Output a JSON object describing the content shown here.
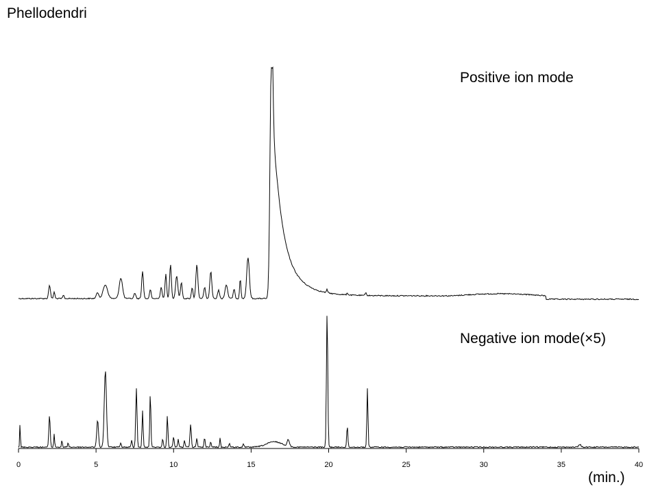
{
  "chart_data": {
    "type": "line",
    "title": "Phellodendri",
    "xlabel": "(min.)",
    "ylabel": "",
    "xlim": [
      0,
      40
    ],
    "xticks": [
      "0",
      "5",
      "10",
      "15",
      "20",
      "25",
      "30",
      "35",
      "40"
    ],
    "grid": false,
    "series": [
      {
        "name": "Positive ion mode",
        "color": "#000000",
        "baseline": "upper",
        "peaks": [
          {
            "x": 2.0,
            "h": 0.06,
            "w": 0.08
          },
          {
            "x": 2.3,
            "h": 0.03,
            "w": 0.06
          },
          {
            "x": 2.9,
            "h": 0.015,
            "w": 0.06
          },
          {
            "x": 5.1,
            "h": 0.025,
            "w": 0.12
          },
          {
            "x": 5.6,
            "h": 0.06,
            "w": 0.2
          },
          {
            "x": 6.6,
            "h": 0.09,
            "w": 0.15
          },
          {
            "x": 7.5,
            "h": 0.025,
            "w": 0.08
          },
          {
            "x": 8.0,
            "h": 0.12,
            "w": 0.08
          },
          {
            "x": 8.5,
            "h": 0.04,
            "w": 0.07
          },
          {
            "x": 9.2,
            "h": 0.05,
            "w": 0.08
          },
          {
            "x": 9.5,
            "h": 0.11,
            "w": 0.07
          },
          {
            "x": 9.8,
            "h": 0.15,
            "w": 0.08
          },
          {
            "x": 10.2,
            "h": 0.1,
            "w": 0.1
          },
          {
            "x": 10.5,
            "h": 0.07,
            "w": 0.08
          },
          {
            "x": 11.2,
            "h": 0.05,
            "w": 0.07
          },
          {
            "x": 11.5,
            "h": 0.15,
            "w": 0.09
          },
          {
            "x": 12.0,
            "h": 0.05,
            "w": 0.08
          },
          {
            "x": 12.4,
            "h": 0.12,
            "w": 0.09
          },
          {
            "x": 12.9,
            "h": 0.04,
            "w": 0.08
          },
          {
            "x": 13.4,
            "h": 0.06,
            "w": 0.12
          },
          {
            "x": 13.9,
            "h": 0.04,
            "w": 0.08
          },
          {
            "x": 14.3,
            "h": 0.09,
            "w": 0.06
          },
          {
            "x": 14.8,
            "h": 0.18,
            "w": 0.12
          },
          {
            "x": 16.3,
            "h": 1.0,
            "w": 0.12,
            "tail": 1.1,
            "tailh": 0.35
          },
          {
            "x": 19.9,
            "h": 0.015,
            "w": 0.05
          },
          {
            "x": 21.2,
            "h": 0.01,
            "w": 0.05
          },
          {
            "x": 22.4,
            "h": 0.015,
            "w": 0.05
          }
        ]
      },
      {
        "name": "Negative ion mode(×5)",
        "color": "#000000",
        "baseline": "lower",
        "peaks": [
          {
            "x": 0.1,
            "h": 0.19,
            "w": 0.03
          },
          {
            "x": 2.0,
            "h": 0.24,
            "w": 0.06
          },
          {
            "x": 2.3,
            "h": 0.1,
            "w": 0.04
          },
          {
            "x": 2.8,
            "h": 0.05,
            "w": 0.04
          },
          {
            "x": 3.2,
            "h": 0.04,
            "w": 0.04
          },
          {
            "x": 5.1,
            "h": 0.2,
            "w": 0.08
          },
          {
            "x": 5.6,
            "h": 0.57,
            "w": 0.1
          },
          {
            "x": 6.6,
            "h": 0.03,
            "w": 0.05
          },
          {
            "x": 7.3,
            "h": 0.05,
            "w": 0.05
          },
          {
            "x": 7.6,
            "h": 0.44,
            "w": 0.06
          },
          {
            "x": 8.0,
            "h": 0.27,
            "w": 0.05
          },
          {
            "x": 8.5,
            "h": 0.41,
            "w": 0.05
          },
          {
            "x": 9.3,
            "h": 0.06,
            "w": 0.05
          },
          {
            "x": 9.6,
            "h": 0.24,
            "w": 0.05
          },
          {
            "x": 10.0,
            "h": 0.08,
            "w": 0.05
          },
          {
            "x": 10.3,
            "h": 0.06,
            "w": 0.05
          },
          {
            "x": 10.7,
            "h": 0.05,
            "w": 0.05
          },
          {
            "x": 11.1,
            "h": 0.17,
            "w": 0.06
          },
          {
            "x": 11.5,
            "h": 0.07,
            "w": 0.05
          },
          {
            "x": 12.0,
            "h": 0.07,
            "w": 0.05
          },
          {
            "x": 12.4,
            "h": 0.04,
            "w": 0.05
          },
          {
            "x": 13.0,
            "h": 0.07,
            "w": 0.04
          },
          {
            "x": 13.6,
            "h": 0.03,
            "w": 0.05
          },
          {
            "x": 14.5,
            "h": 0.02,
            "w": 0.05
          },
          {
            "x": 16.5,
            "h": 0.04,
            "w": 0.7
          },
          {
            "x": 17.4,
            "h": 0.05,
            "w": 0.1
          },
          {
            "x": 19.9,
            "h": 1.0,
            "w": 0.06
          },
          {
            "x": 21.2,
            "h": 0.16,
            "w": 0.05
          },
          {
            "x": 22.5,
            "h": 0.44,
            "w": 0.05
          },
          {
            "x": 36.2,
            "h": 0.02,
            "w": 0.1
          }
        ]
      }
    ]
  }
}
